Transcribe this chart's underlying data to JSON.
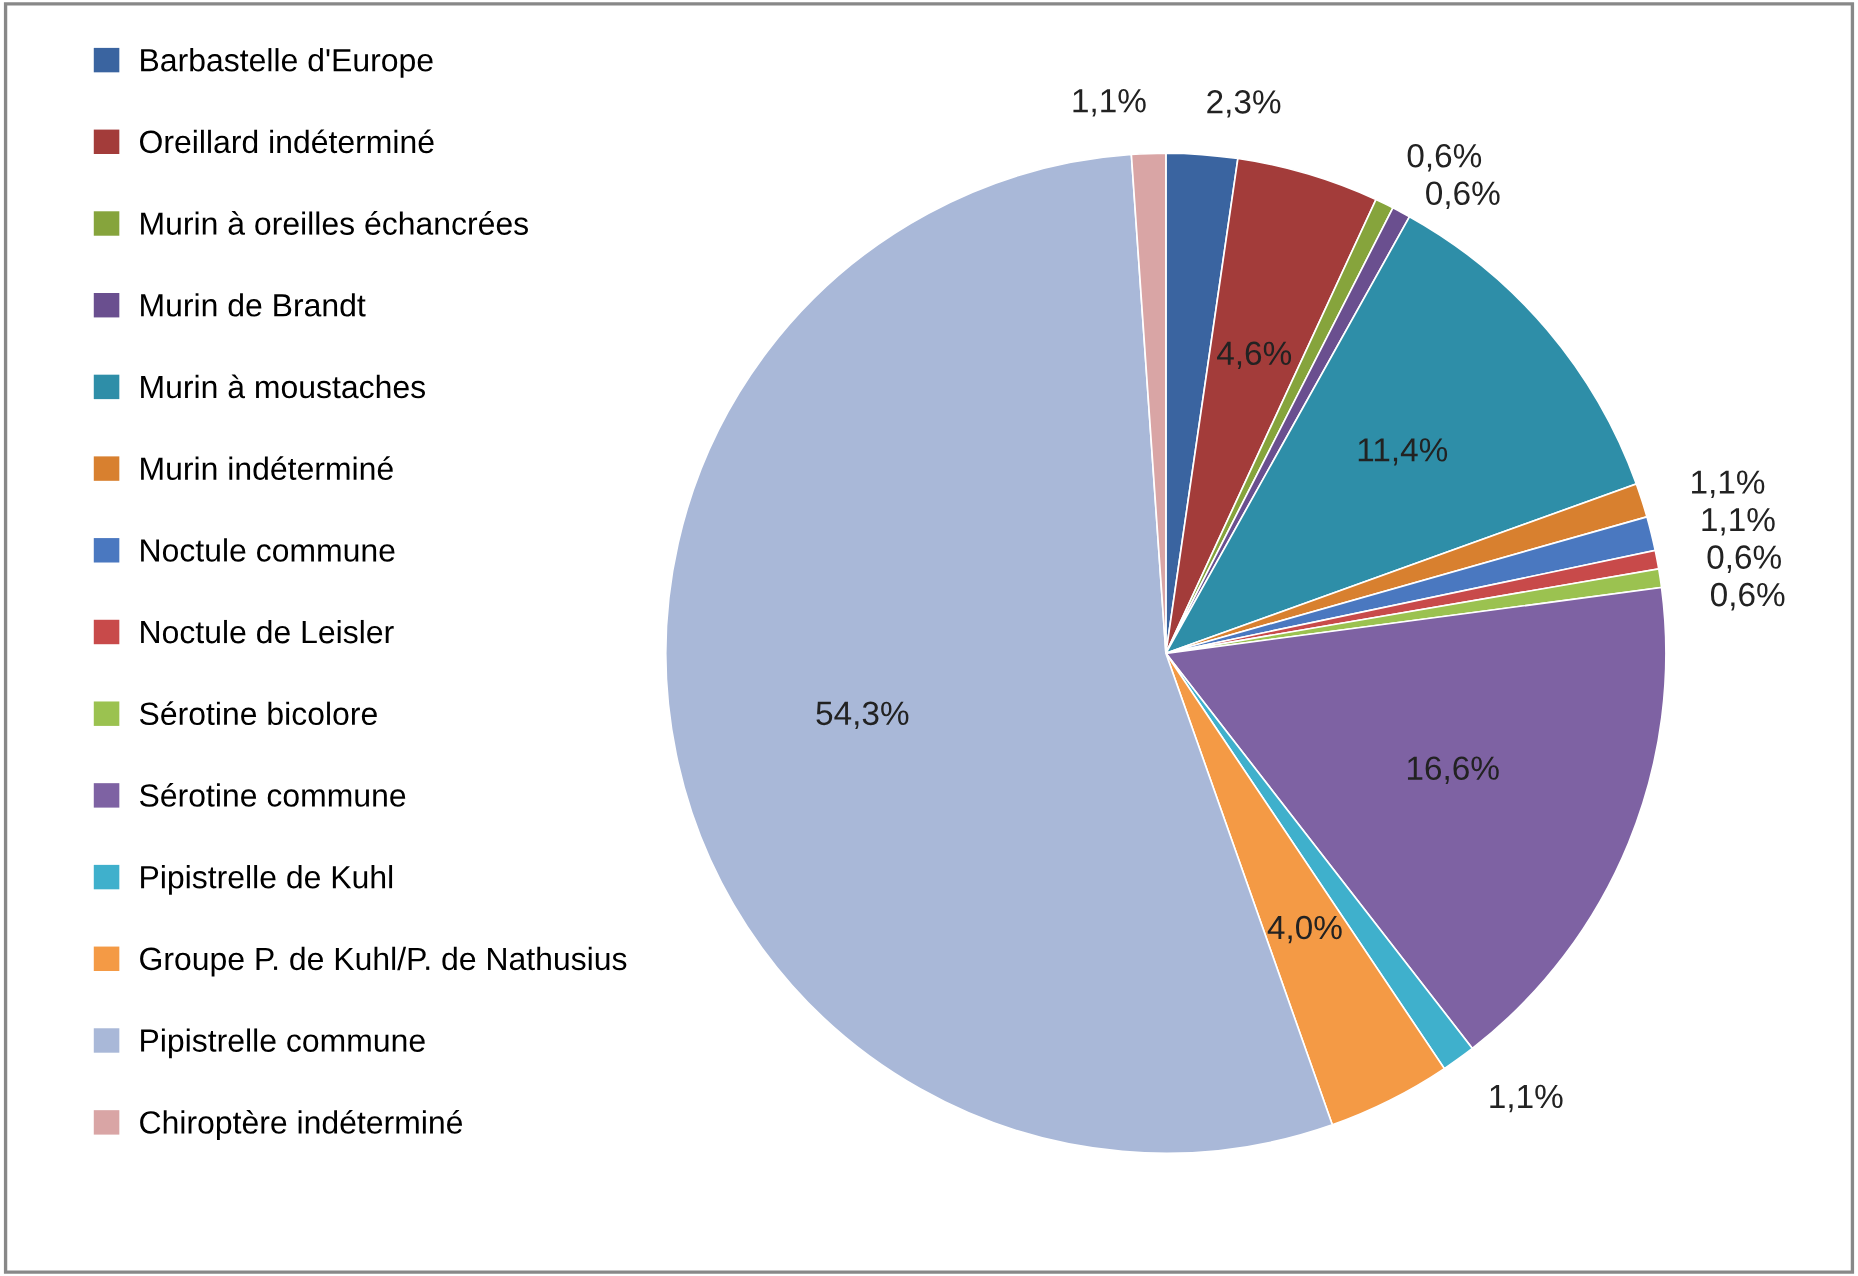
{
  "chart_data": {
    "type": "pie",
    "categories": [
      "Barbastelle d'Europe",
      "Oreillard indéterminé",
      "Murin à oreilles échancrées",
      "Murin de Brandt",
      "Murin à moustaches",
      "Murin indéterminé",
      "Noctule commune",
      "Noctule de Leisler",
      "Sérotine bicolore",
      "Sérotine commune",
      "Pipistrelle de Kuhl",
      "Groupe P. de Kuhl/P. de Nathusius",
      "Pipistrelle commune",
      "Chiroptère indéterminé"
    ],
    "values": [
      2.3,
      4.6,
      0.6,
      0.6,
      11.4,
      1.1,
      1.1,
      0.6,
      0.6,
      16.6,
      1.1,
      4.0,
      54.3,
      1.1
    ],
    "value_labels": [
      "2,3%",
      "4,6%",
      "0,6%",
      "0,6%",
      "11,4%",
      "1,1%",
      "1,1%",
      "0,6%",
      "0,6%",
      "16,6%",
      "1,1%",
      "4,0%",
      "54,3%",
      "1,1%"
    ],
    "colors": [
      "#3a64a0",
      "#a33c3a",
      "#86a43c",
      "#6a4f8f",
      "#2e8ea8",
      "#d8802f",
      "#4a78c0",
      "#c84a4a",
      "#9bc250",
      "#7e62a3",
      "#3fb0cc",
      "#f49a45",
      "#a9b8d8",
      "#d9a5a5"
    ],
    "legend": "left"
  }
}
